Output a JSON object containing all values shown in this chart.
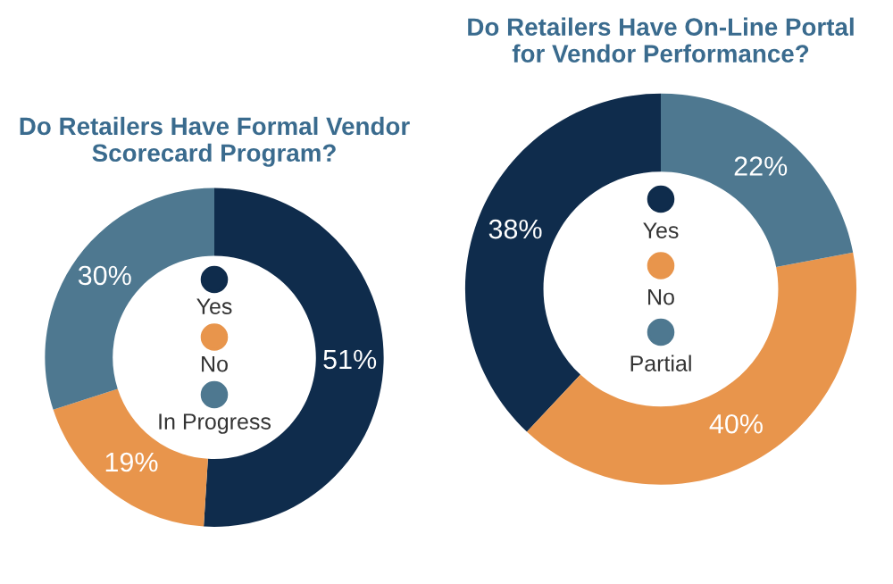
{
  "chart_data": [
    {
      "type": "donut",
      "title": "Do Retailers Have Formal Vendor\nScorecard Program?",
      "categories": [
        "Yes",
        "No",
        "In Progress"
      ],
      "values": [
        51,
        19,
        30
      ],
      "value_labels": [
        "51%",
        "19%",
        "30%"
      ],
      "colors": [
        "#0f2c4c",
        "#e8954c",
        "#4e7890"
      ],
      "legend": "center"
    },
    {
      "type": "donut",
      "title": "Do Retailers Have On-Line Portal\nfor Vendor Performance?",
      "categories": [
        "Yes",
        "No",
        "Partial"
      ],
      "values": [
        38,
        40,
        22
      ],
      "value_labels": [
        "38%",
        "40%",
        "22%"
      ],
      "colors": [
        "#0f2c4c",
        "#e8954c",
        "#4e7890"
      ],
      "legend": "center"
    }
  ]
}
